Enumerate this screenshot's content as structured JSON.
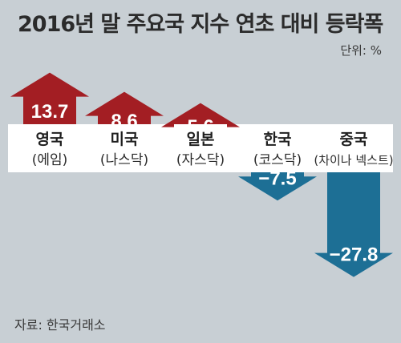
{
  "header": {
    "title": "2016년 말 주요국 지수 연초 대비 등락폭",
    "unit": "단위: %"
  },
  "footer": {
    "source": "자료: 한국거래소"
  },
  "colors": {
    "positive": "#a31e23",
    "negative": "#1d6f95",
    "band": "#ffffff"
  },
  "chart_data": {
    "type": "bar",
    "title": "2016년 말 주요국 지수 연초 대비 등락폭",
    "ylabel": "단위: %",
    "categories": [
      "영국",
      "미국",
      "일본",
      "한국",
      "중국"
    ],
    "indices": [
      "(에임)",
      "(나스닥)",
      "(자스닥)",
      "(코스닥)",
      "(차이나 넥스트)"
    ],
    "values": [
      13.7,
      8.6,
      5.6,
      -7.5,
      -27.8
    ],
    "value_labels": [
      "13.7",
      "8.6",
      "5.6",
      "−7.5",
      "−27.8"
    ]
  }
}
